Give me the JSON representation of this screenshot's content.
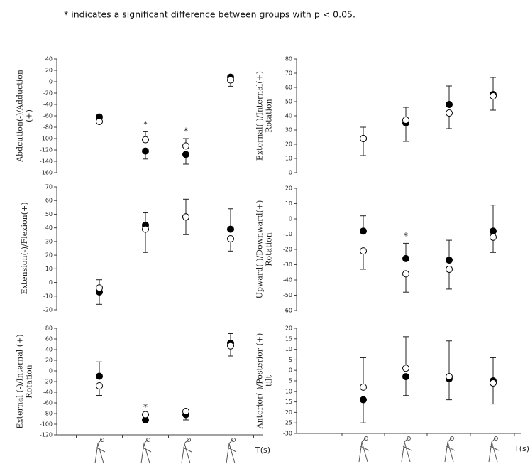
{
  "note": "* indicates a significant difference between groups with p < 0.05.",
  "chart_data": [
    {
      "type": "scatter",
      "ylabel": [
        "Abdcution(-)/Adduction",
        "(+)"
      ],
      "categories": [
        null,
        null,
        null,
        null
      ],
      "ylim": [
        -160,
        40
      ],
      "yticks": [
        -160,
        -140,
        -120,
        -100,
        -80,
        -60,
        -40,
        -20,
        0,
        20,
        40
      ],
      "significance": [
        null,
        "*",
        "*",
        null
      ],
      "series": [
        {
          "marker": "filled",
          "color": "#000000",
          "values": [
            -62,
            -122,
            -128,
            8
          ],
          "errors": [
            null,
            14,
            17,
            null
          ],
          "error_directions": [
            null,
            "down",
            "down",
            null
          ]
        },
        {
          "marker": "open",
          "color": "#ffffff",
          "values": [
            -70,
            -102,
            -113,
            3
          ],
          "errors": [
            null,
            14,
            13,
            11
          ],
          "error_directions": [
            null,
            "up",
            "up",
            "down"
          ]
        }
      ]
    },
    {
      "type": "scatter",
      "ylabel": [
        "External(-)/Internal(+)",
        "Rotation"
      ],
      "categories": [
        null,
        null,
        null,
        null
      ],
      "ylim": [
        0,
        80
      ],
      "yticks": [
        0,
        10,
        20,
        30,
        40,
        50,
        60,
        70,
        80
      ],
      "significance": [
        null,
        null,
        null,
        null
      ],
      "series": [
        {
          "marker": "filled",
          "color": "#000000",
          "values": [
            24,
            35,
            48,
            55
          ],
          "errors": [
            12,
            13,
            13,
            12
          ],
          "error_directions": [
            "down",
            "down",
            "up",
            "up"
          ]
        },
        {
          "marker": "open",
          "color": "#ffffff",
          "values": [
            24,
            37,
            42,
            54
          ],
          "errors": [
            8,
            9,
            11,
            10
          ],
          "error_directions": [
            "up",
            "up",
            "down",
            "down"
          ]
        }
      ]
    },
    {
      "type": "scatter",
      "ylabel": [
        "Extension(-)/Flexion(+)"
      ],
      "categories": [
        null,
        null,
        null,
        null
      ],
      "ylim": [
        -20,
        70
      ],
      "yticks": [
        -20,
        -10,
        0,
        10,
        20,
        30,
        40,
        50,
        60,
        70
      ],
      "significance": [
        null,
        null,
        null,
        null
      ],
      "series": [
        {
          "marker": "filled",
          "color": "#000000",
          "values": [
            -7,
            42,
            48,
            39
          ],
          "errors": [
            9,
            9,
            13,
            15
          ],
          "error_directions": [
            "down",
            "up",
            "down",
            "up"
          ]
        },
        {
          "marker": "open",
          "color": "#ffffff",
          "values": [
            -4,
            39,
            48,
            32
          ],
          "errors": [
            6,
            17,
            13,
            9
          ],
          "error_directions": [
            "up",
            "down",
            "up",
            "down"
          ]
        }
      ]
    },
    {
      "type": "scatter",
      "ylabel": [
        "Upward(-)/Downward(+)",
        "Rotation"
      ],
      "categories": [
        null,
        null,
        null,
        null
      ],
      "ylim": [
        -60,
        20
      ],
      "yticks": [
        -60,
        -50,
        -40,
        -30,
        -20,
        -10,
        0,
        10,
        20
      ],
      "significance": [
        null,
        "*",
        null,
        null
      ],
      "series": [
        {
          "marker": "filled",
          "color": "#000000",
          "values": [
            -8,
            -26,
            -27,
            -8
          ],
          "errors": [
            10,
            10,
            13,
            17
          ],
          "error_directions": [
            "up",
            "up",
            "up",
            "up"
          ]
        },
        {
          "marker": "open",
          "color": "#ffffff",
          "values": [
            -21,
            -36,
            -33,
            -12
          ],
          "errors": [
            12,
            12,
            13,
            10
          ],
          "error_directions": [
            "down",
            "down",
            "down",
            "down"
          ]
        }
      ]
    },
    {
      "type": "scatter",
      "ylabel": [
        "External  (-)/Internal  (+)",
        "Rotation"
      ],
      "categories": [
        null,
        null,
        null,
        null
      ],
      "xlabel": "T(s)",
      "x_axis": true,
      "ylim": [
        -120,
        80
      ],
      "yticks": [
        -120,
        -100,
        -80,
        -60,
        -40,
        -20,
        0,
        20,
        40,
        60,
        80
      ],
      "significance": [
        null,
        "*",
        null,
        null
      ],
      "series": [
        {
          "marker": "filled",
          "color": "#000000",
          "values": [
            -10,
            -92,
            -82,
            52
          ],
          "errors": [
            27,
            6,
            10,
            18
          ],
          "error_directions": [
            "up",
            "down",
            "down",
            "up"
          ]
        },
        {
          "marker": "open",
          "color": "#ffffff",
          "values": [
            -28,
            -82,
            -76,
            47
          ],
          "errors": [
            18,
            null,
            null,
            19
          ],
          "error_directions": [
            "down",
            null,
            null,
            "down"
          ]
        }
      ]
    },
    {
      "type": "scatter",
      "ylabel": [
        "Anterior(-)/Posterior  (+)",
        "tilt"
      ],
      "categories": [
        null,
        null,
        null,
        null
      ],
      "xlabel": "T(s)",
      "x_axis": true,
      "ylim": [
        -30,
        20
      ],
      "yticks": [
        {
          "value": -30,
          "label": "-30"
        },
        {
          "value": -25,
          "label": "25"
        },
        {
          "value": -20,
          "label": "20"
        },
        {
          "value": -15,
          "label": "15"
        },
        {
          "value": -10,
          "label": "10"
        },
        {
          "value": -5,
          "label": "5"
        },
        0,
        5,
        10,
        15,
        20
      ],
      "significance": [
        null,
        null,
        null,
        null
      ],
      "series": [
        {
          "marker": "filled",
          "color": "#000000",
          "values": [
            -14,
            -3,
            -4,
            -5
          ],
          "errors": [
            11,
            9,
            10,
            11
          ],
          "error_directions": [
            "down",
            "down",
            "down",
            "up"
          ]
        },
        {
          "marker": "open",
          "color": "#ffffff",
          "values": [
            -8,
            1,
            -3,
            -6
          ],
          "errors": [
            14,
            15,
            17,
            10
          ],
          "error_directions": [
            "up",
            "up",
            "up",
            "down"
          ]
        }
      ]
    }
  ]
}
